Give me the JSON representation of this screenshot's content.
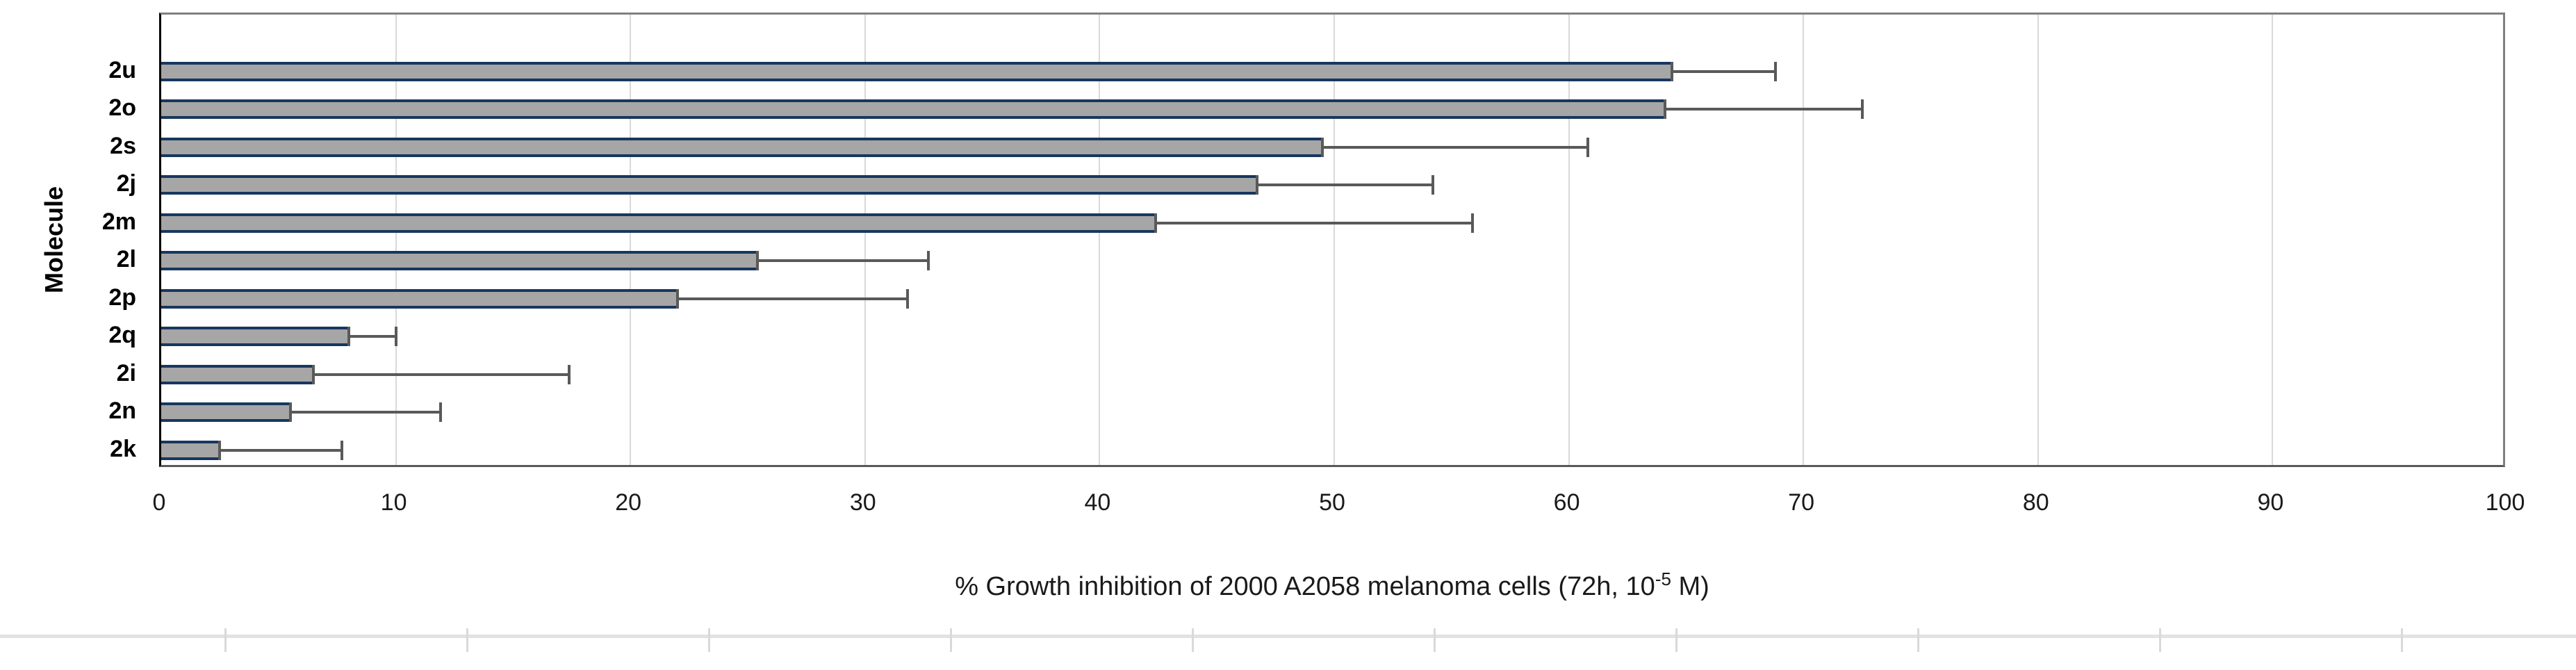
{
  "chart_data": {
    "type": "bar",
    "orientation": "horizontal",
    "title_parts": {
      "prefix": "% Growth inhibition of 2000 A2058 melanoma cells (72h, 10",
      "superscript": "-5",
      "suffix": " M)"
    },
    "ylabel": "Molecule",
    "xlabel_ticks": [
      "0",
      "10",
      "20",
      "30",
      "40",
      "50",
      "60",
      "70",
      "80",
      "90",
      "100"
    ],
    "xlim": [
      0,
      100
    ],
    "grid": true,
    "legend": false,
    "categories": [
      "2u",
      "2o",
      "2s",
      "2j",
      "2m",
      "2l",
      "2p",
      "2q",
      "2i",
      "2n",
      "2k"
    ],
    "values": [
      64.4,
      64.1,
      49.5,
      46.7,
      42.4,
      25.4,
      22.0,
      8.0,
      6.5,
      5.5,
      2.5
    ],
    "error_plus": [
      4.4,
      8.4,
      11.3,
      7.5,
      13.5,
      7.3,
      9.8,
      2.0,
      10.9,
      6.4,
      5.2
    ],
    "empty_top_category_slot": true,
    "colors": {
      "bar_fill": "#a6a6a6",
      "bar_edge": "#17375e",
      "error_bar": "#595959",
      "gridline": "#d9d9d9",
      "plot_border": "#808080",
      "bottom_axis": "#595959",
      "left_axis": "#000000",
      "text": "#1a1a1a",
      "sheet_gridline": "#d9d9d9"
    }
  },
  "layout_note": "Excel-style horizontal bar chart with plus-direction error bars; sliver of worksheet gridlines visible below chart"
}
